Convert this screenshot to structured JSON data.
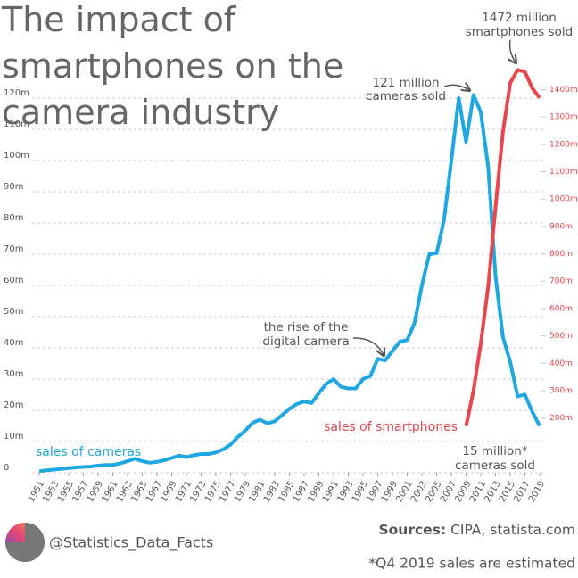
{
  "chart_data": {
    "type": "line",
    "title": "The impact of smartphones on the camera industry",
    "xlim": [
      1951,
      2019
    ],
    "xticks": [
      1951,
      1953,
      1955,
      1957,
      1959,
      1961,
      1963,
      1965,
      1967,
      1969,
      1971,
      1973,
      1975,
      1977,
      1979,
      1981,
      1983,
      1985,
      1987,
      1989,
      1991,
      1993,
      1995,
      1997,
      1999,
      2001,
      2003,
      2005,
      2007,
      2009,
      2011,
      2013,
      2015,
      2017,
      2019
    ],
    "ylim": [
      0,
      125
    ],
    "yticks": [
      0,
      {
        "value": 10,
        "label": "10m"
      },
      {
        "value": 20,
        "label": "20m"
      },
      {
        "value": 30,
        "label": "30m"
      },
      {
        "value": 40,
        "label": "40m"
      },
      {
        "value": 50,
        "label": "50m"
      },
      {
        "value": 60,
        "label": "60m"
      },
      {
        "value": 70,
        "label": "70m"
      },
      {
        "value": 80,
        "label": "80m"
      },
      {
        "value": 90,
        "label": "90m"
      },
      {
        "value": 100,
        "label": "100m"
      },
      {
        "value": 110,
        "label": "110m"
      },
      {
        "value": 120,
        "label": "120m"
      }
    ],
    "y2lim": [
      0,
      1426
    ],
    "y2ticks": [
      {
        "value": 200,
        "label": "200m"
      },
      {
        "value": 300,
        "label": "300m"
      },
      {
        "value": 400,
        "label": "400m"
      },
      {
        "value": 500,
        "label": "500m"
      },
      {
        "value": 600,
        "label": "600m"
      },
      {
        "value": 700,
        "label": "700m"
      },
      {
        "value": 800,
        "label": "800m"
      },
      {
        "value": 900,
        "label": "900m"
      },
      {
        "value": 1000,
        "label": "1000m"
      },
      {
        "value": 1100,
        "label": "1100m"
      },
      {
        "value": 1200,
        "label": "1200m"
      },
      {
        "value": 1300,
        "label": "1300m"
      },
      {
        "value": 1400,
        "label": "1400m"
      }
    ],
    "grid": true,
    "series": [
      {
        "name": "sales of cameras",
        "color": "#1ea7e1",
        "x": [
          1951,
          1952,
          1953,
          1954,
          1955,
          1956,
          1957,
          1958,
          1959,
          1960,
          1961,
          1962,
          1963,
          1964,
          1965,
          1966,
          1967,
          1968,
          1969,
          1970,
          1971,
          1972,
          1973,
          1974,
          1975,
          1976,
          1977,
          1978,
          1979,
          1980,
          1981,
          1982,
          1983,
          1984,
          1985,
          1986,
          1987,
          1988,
          1989,
          1990,
          1991,
          1992,
          1993,
          1994,
          1995,
          1996,
          1997,
          1998,
          1999,
          2000,
          2001,
          2002,
          2003,
          2004,
          2005,
          2006,
          2007,
          2008,
          2009,
          2010,
          2011,
          2012,
          2013,
          2014,
          2015,
          2016,
          2017,
          2018,
          2019
        ],
        "values": [
          0.5,
          0.8,
          1,
          1.2,
          1.5,
          1.7,
          1.9,
          2,
          2.3,
          2.5,
          2.5,
          3,
          3.7,
          4.5,
          3.7,
          3.2,
          3.5,
          4,
          4.7,
          5.5,
          5,
          5.6,
          6,
          6,
          6.5,
          7.5,
          9,
          11.5,
          13.5,
          16,
          17,
          15.8,
          16.5,
          18.5,
          20.5,
          22,
          22.8,
          22.3,
          25.5,
          28.5,
          30,
          27.5,
          27,
          27,
          30,
          31,
          36.5,
          36,
          39,
          42,
          42.5,
          48,
          60,
          70,
          70.3,
          81,
          100,
          120,
          106,
          121,
          115.5,
          98,
          63,
          43.5,
          35.5,
          24.5,
          25,
          19.5,
          15
        ]
      },
      {
        "name": "sales of smartphones",
        "color": "#e8464d",
        "axis": "y2",
        "x": [
          2009,
          2010,
          2011,
          2012,
          2013,
          2014,
          2015,
          2016,
          2017,
          2018,
          2019
        ],
        "values": [
          170,
          300,
          472,
          680,
          970,
          1245,
          1424,
          1472,
          1465,
          1405,
          1370
        ]
      }
    ],
    "annotations": {
      "peak_cameras": [
        "121 million",
        "cameras sold"
      ],
      "peak_smartphones": [
        "1472 million",
        "smartphones sold"
      ],
      "digital": [
        "the rise of the",
        "digital camera"
      ],
      "latest": [
        "15 million*",
        "cameras sold"
      ]
    }
  },
  "footer": {
    "handle": "@Statistics_Data_Facts",
    "source_label": "Sources:",
    "source_text": "CIPA, statista.com",
    "note": "*Q4 2019 sales are estimated"
  }
}
